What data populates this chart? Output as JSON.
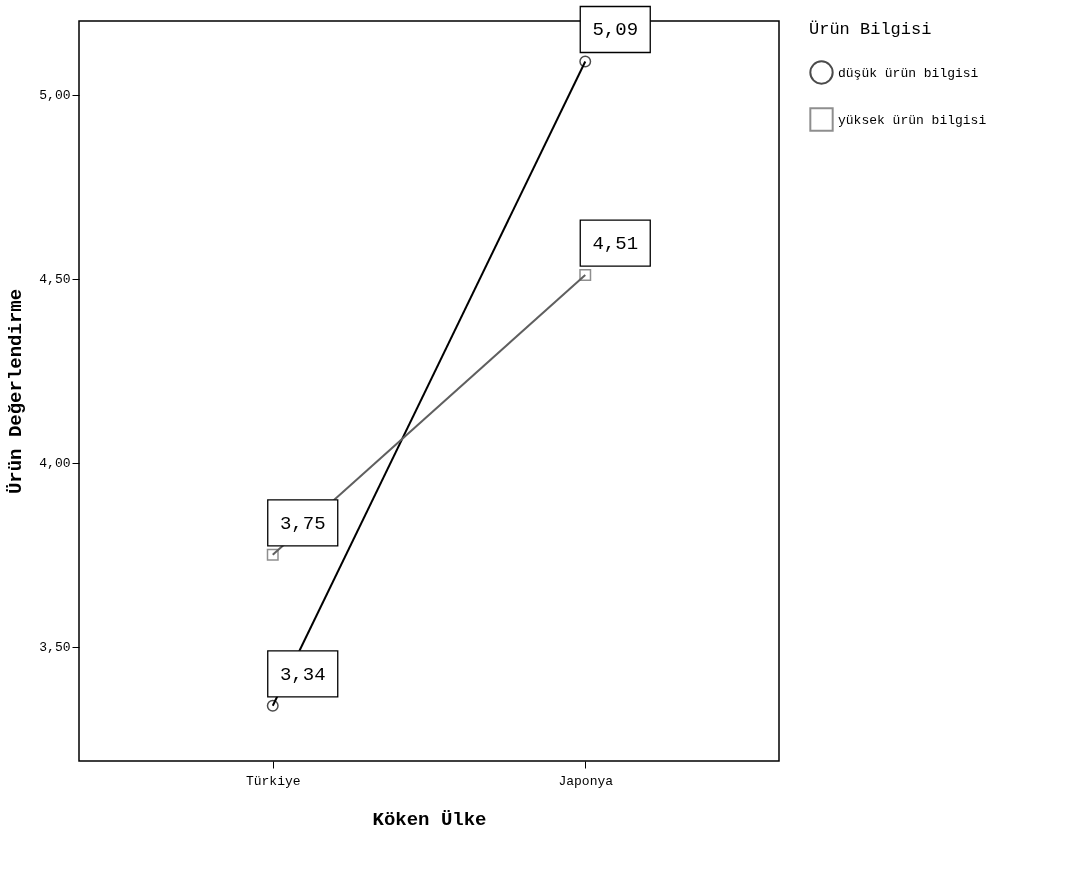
{
  "chart_data": {
    "type": "line",
    "xlabel": "Köken Ülke",
    "ylabel": "Ürün Değerlendirme",
    "legend_title": "Ürün Bilgisi",
    "categories": [
      "Türkiye",
      "Japonya"
    ],
    "series": [
      {
        "name": "düşük ürün bilgisi",
        "color": "#000000",
        "marker": "circle",
        "values": [
          3.34,
          5.09
        ],
        "value_labels": [
          "3,34",
          "5,09"
        ]
      },
      {
        "name": "yüksek ürün bilgisi",
        "color": "#5f5f5f",
        "marker": "square",
        "values": [
          3.75,
          4.51
        ],
        "value_labels": [
          "3,75",
          "4,51"
        ]
      }
    ],
    "ylim": [
      3.19,
      5.2
    ],
    "yticks": [
      {
        "value": 3.5,
        "label": "3,50"
      },
      {
        "value": 4,
        "label": "4,00"
      },
      {
        "value": 4.5,
        "label": "4,50"
      },
      {
        "value": 5,
        "label": "5,00"
      }
    ],
    "grid": false,
    "legend": "right"
  }
}
